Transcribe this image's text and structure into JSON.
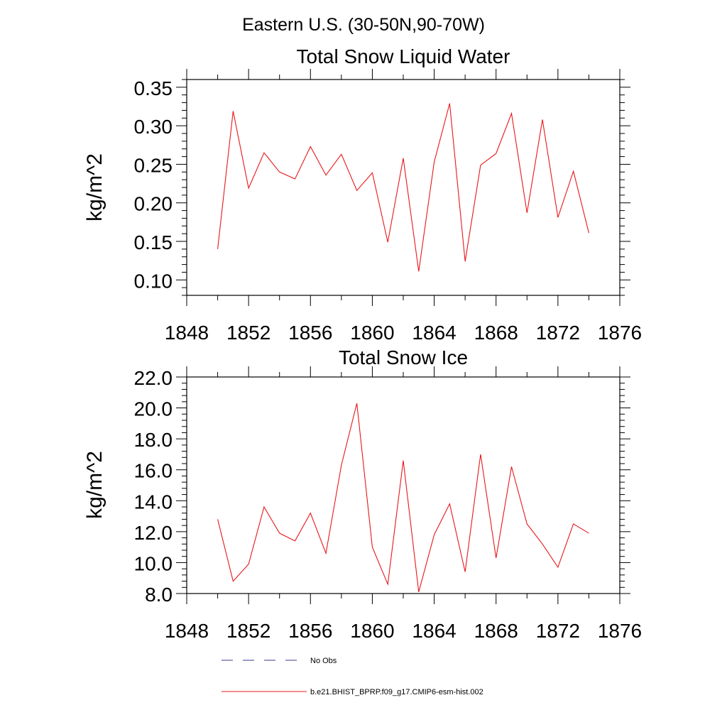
{
  "figure_title": "Eastern U.S. (30-50N,90-70W)",
  "colors": {
    "model": "#e8171b",
    "obs": "#3a3a8c",
    "axis": "#000000"
  },
  "legend": {
    "obs_label": "No Obs",
    "model_label": "b.e21.BHIST_BPRP.f09_g17.CMIP6-esm-hist.002"
  },
  "chart_data": [
    {
      "type": "line",
      "title": "Total Snow Liquid Water",
      "xlabel": "",
      "ylabel": "kg/m^2",
      "xlim": [
        1848,
        1876
      ],
      "ylim": [
        0.08,
        0.36
      ],
      "xticks": [
        1848,
        1852,
        1856,
        1860,
        1864,
        1868,
        1872,
        1876
      ],
      "xtick_labels": [
        "1848",
        "1852",
        "1856",
        "1860",
        "1864",
        "1868",
        "1872",
        "1876"
      ],
      "yticks": [
        0.1,
        0.15,
        0.2,
        0.25,
        0.3,
        0.35
      ],
      "ytick_labels": [
        "0.10",
        "0.15",
        "0.20",
        "0.25",
        "0.30",
        "0.35"
      ],
      "x": [
        1850,
        1851,
        1852,
        1853,
        1854,
        1855,
        1856,
        1857,
        1858,
        1859,
        1860,
        1861,
        1862,
        1863,
        1864,
        1865,
        1866,
        1867,
        1868,
        1869,
        1870,
        1871,
        1872,
        1873,
        1874
      ],
      "series": [
        {
          "name": "b.e21.BHIST_BPRP.f09_g17.CMIP6-esm-hist.002",
          "values": [
            0.14,
            0.319,
            0.219,
            0.265,
            0.24,
            0.231,
            0.273,
            0.236,
            0.263,
            0.216,
            0.239,
            0.149,
            0.258,
            0.111,
            0.253,
            0.329,
            0.124,
            0.249,
            0.264,
            0.316,
            0.187,
            0.308,
            0.181,
            0.241,
            0.161
          ]
        }
      ]
    },
    {
      "type": "line",
      "title": "Total Snow Ice",
      "xlabel": "",
      "ylabel": "kg/m^2",
      "xlim": [
        1848,
        1876
      ],
      "ylim": [
        8.0,
        22.0
      ],
      "xticks": [
        1848,
        1852,
        1856,
        1860,
        1864,
        1868,
        1872,
        1876
      ],
      "xtick_labels": [
        "1848",
        "1852",
        "1856",
        "1860",
        "1864",
        "1868",
        "1872",
        "1876"
      ],
      "yticks": [
        8,
        10,
        12,
        14,
        16,
        18,
        20,
        22
      ],
      "ytick_labels": [
        "8.0",
        "10.0",
        "12.0",
        "14.0",
        "16.0",
        "18.0",
        "20.0",
        "22.0"
      ],
      "x": [
        1850,
        1851,
        1852,
        1853,
        1854,
        1855,
        1856,
        1857,
        1858,
        1859,
        1860,
        1861,
        1862,
        1863,
        1864,
        1865,
        1866,
        1867,
        1868,
        1869,
        1870,
        1871,
        1872,
        1873,
        1874
      ],
      "series": [
        {
          "name": "b.e21.BHIST_BPRP.f09_g17.CMIP6-esm-hist.002",
          "values": [
            12.8,
            8.8,
            9.9,
            13.6,
            11.9,
            11.4,
            13.2,
            10.6,
            16.3,
            20.3,
            11.0,
            8.6,
            16.6,
            8.1,
            11.8,
            13.8,
            9.4,
            17.0,
            10.3,
            16.2,
            12.5,
            11.2,
            9.7,
            12.5,
            11.9
          ]
        }
      ]
    }
  ]
}
